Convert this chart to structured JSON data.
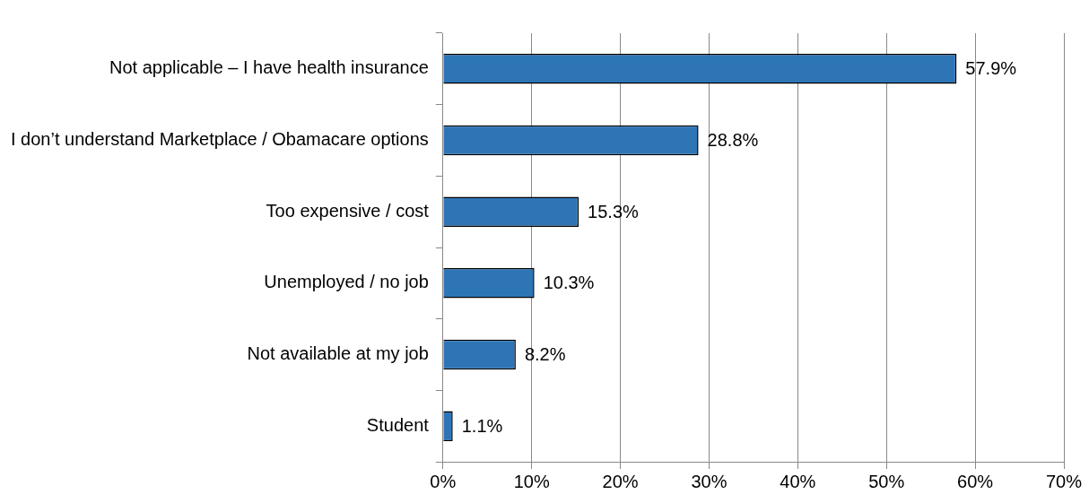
{
  "chart_data": {
    "type": "bar",
    "orientation": "horizontal",
    "categories": [
      "Not applicable – I have health insurance",
      "I don’t understand Marketplace / Obamacare options",
      "Too expensive / cost",
      "Unemployed / no job",
      "Not available at my job",
      "Student"
    ],
    "values": [
      57.9,
      28.8,
      15.3,
      10.3,
      8.2,
      1.1
    ],
    "value_labels": [
      "57.9%",
      "28.8%",
      "15.3%",
      "10.3%",
      "8.2%",
      "1.1%"
    ],
    "color": "#2e75b6",
    "xlim": [
      0,
      70
    ],
    "xticks": [
      {
        "value": 0,
        "label": "0%"
      },
      {
        "value": 10,
        "label": "10%"
      },
      {
        "value": 20,
        "label": "20%"
      },
      {
        "value": 30,
        "label": "30%"
      },
      {
        "value": 40,
        "label": "40%"
      },
      {
        "value": 50,
        "label": "50%"
      },
      {
        "value": 60,
        "label": "60%"
      },
      {
        "value": 70,
        "label": "70%"
      }
    ],
    "grid": "x",
    "legend": false
  }
}
